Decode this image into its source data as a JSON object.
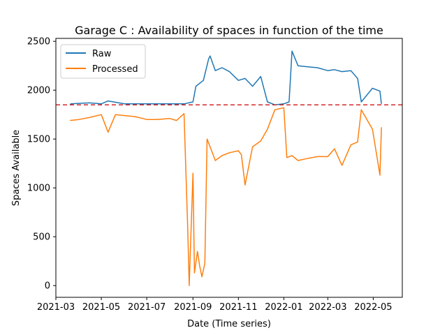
{
  "chart_data": {
    "type": "line",
    "title": "Garage C : Availability of spaces in function of the time",
    "xlabel": "Date (Time series)",
    "ylabel": "Spaces Available",
    "xlim": [
      "2021-03-01",
      "2022-06-09"
    ],
    "ylim": [
      -120,
      2530
    ],
    "x_ticks": [
      "2021-03",
      "2021-05",
      "2021-07",
      "2021-09",
      "2021-11",
      "2022-01",
      "2022-03",
      "2022-05"
    ],
    "y_ticks": [
      0,
      500,
      1000,
      1500,
      2000,
      2500
    ],
    "reference_line": {
      "y": 1850,
      "color": "#d62728",
      "style": "dashed"
    },
    "legend": {
      "position": "top-left",
      "entries": [
        "Raw",
        "Processed"
      ]
    },
    "grid": false,
    "series": [
      {
        "name": "Raw",
        "color": "#1f77b4",
        "points": [
          [
            "2021-03-20",
            1850
          ],
          [
            "2021-03-21",
            1860
          ],
          [
            "2021-04-01",
            1865
          ],
          [
            "2021-04-15",
            1870
          ],
          [
            "2021-05-01",
            1860
          ],
          [
            "2021-05-10",
            1890
          ],
          [
            "2021-06-01",
            1860
          ],
          [
            "2021-07-01",
            1860
          ],
          [
            "2021-08-01",
            1860
          ],
          [
            "2021-08-20",
            1860
          ],
          [
            "2021-09-01",
            1880
          ],
          [
            "2021-09-05",
            2040
          ],
          [
            "2021-09-15",
            2100
          ],
          [
            "2021-09-22",
            2320
          ],
          [
            "2021-09-24",
            2350
          ],
          [
            "2021-10-01",
            2200
          ],
          [
            "2021-10-10",
            2230
          ],
          [
            "2021-10-20",
            2190
          ],
          [
            "2021-11-01",
            2100
          ],
          [
            "2021-11-10",
            2120
          ],
          [
            "2021-11-20",
            2040
          ],
          [
            "2021-12-01",
            2140
          ],
          [
            "2021-12-10",
            1880
          ],
          [
            "2021-12-20",
            1850
          ],
          [
            "2022-01-01",
            1860
          ],
          [
            "2022-01-08",
            1880
          ],
          [
            "2022-01-12",
            2400
          ],
          [
            "2022-01-20",
            2250
          ],
          [
            "2022-02-01",
            2240
          ],
          [
            "2022-02-15",
            2230
          ],
          [
            "2022-03-01",
            2200
          ],
          [
            "2022-03-10",
            2210
          ],
          [
            "2022-03-20",
            2190
          ],
          [
            "2022-04-01",
            2200
          ],
          [
            "2022-04-10",
            2120
          ],
          [
            "2022-04-15",
            1880
          ],
          [
            "2022-04-30",
            2020
          ],
          [
            "2022-05-10",
            1990
          ],
          [
            "2022-05-12",
            1860
          ]
        ]
      },
      {
        "name": "Processed",
        "color": "#ff7f0e",
        "points": [
          [
            "2021-03-20",
            1690
          ],
          [
            "2021-04-01",
            1700
          ],
          [
            "2021-04-15",
            1720
          ],
          [
            "2021-05-01",
            1750
          ],
          [
            "2021-05-10",
            1570
          ],
          [
            "2021-05-20",
            1750
          ],
          [
            "2021-06-01",
            1740
          ],
          [
            "2021-06-15",
            1730
          ],
          [
            "2021-07-01",
            1700
          ],
          [
            "2021-07-15",
            1700
          ],
          [
            "2021-08-01",
            1710
          ],
          [
            "2021-08-10",
            1690
          ],
          [
            "2021-08-20",
            1760
          ],
          [
            "2021-08-25",
            580
          ],
          [
            "2021-08-27",
            0
          ],
          [
            "2021-09-01",
            1150
          ],
          [
            "2021-09-03",
            130
          ],
          [
            "2021-09-07",
            350
          ],
          [
            "2021-09-10",
            200
          ],
          [
            "2021-09-13",
            90
          ],
          [
            "2021-09-17",
            230
          ],
          [
            "2021-09-20",
            1500
          ],
          [
            "2021-10-01",
            1280
          ],
          [
            "2021-10-10",
            1330
          ],
          [
            "2021-10-20",
            1360
          ],
          [
            "2021-11-01",
            1380
          ],
          [
            "2021-11-05",
            1340
          ],
          [
            "2021-11-10",
            1030
          ],
          [
            "2021-11-20",
            1420
          ],
          [
            "2021-12-01",
            1480
          ],
          [
            "2021-12-10",
            1600
          ],
          [
            "2021-12-20",
            1800
          ],
          [
            "2022-01-01",
            1820
          ],
          [
            "2022-01-05",
            1310
          ],
          [
            "2022-01-12",
            1330
          ],
          [
            "2022-01-20",
            1280
          ],
          [
            "2022-02-01",
            1300
          ],
          [
            "2022-02-15",
            1320
          ],
          [
            "2022-03-01",
            1320
          ],
          [
            "2022-03-10",
            1400
          ],
          [
            "2022-03-20",
            1230
          ],
          [
            "2022-04-01",
            1440
          ],
          [
            "2022-04-10",
            1470
          ],
          [
            "2022-04-15",
            1800
          ],
          [
            "2022-04-30",
            1600
          ],
          [
            "2022-05-10",
            1130
          ],
          [
            "2022-05-12",
            1620
          ]
        ]
      }
    ]
  }
}
